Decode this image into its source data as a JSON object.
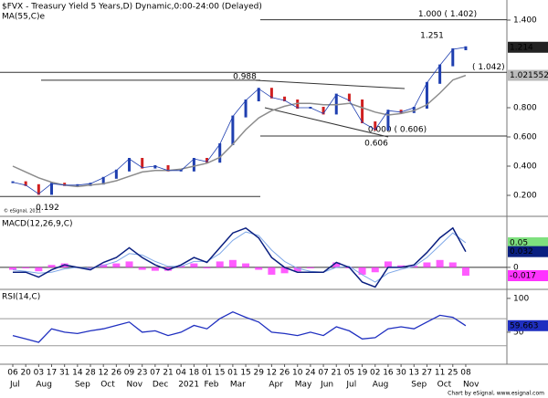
{
  "chart_data": [
    {
      "type": "line",
      "title": "$FVX - Treasury Yield 5 Years,D) Dynamic,0:00-24:00 (Delayed)",
      "indicator": "MA(55,C)e",
      "watermark": "© eSignal, 2011",
      "categories": [
        "06",
        "20",
        "03",
        "17",
        "31",
        "14",
        "28",
        "12",
        "26",
        "09",
        "23",
        "07",
        "21",
        "04",
        "18",
        "01",
        "15",
        "01",
        "15",
        "29",
        "12",
        "26",
        "10",
        "24",
        "07",
        "21",
        "05",
        "19",
        "02",
        "16",
        "30",
        "13",
        "27",
        "11",
        "25",
        "08"
      ],
      "month_labels": [
        "Jul",
        null,
        "Aug",
        null,
        null,
        "Sep",
        null,
        "Oct",
        null,
        "Nov",
        null,
        "Dec",
        null,
        "2021",
        null,
        "Feb",
        null,
        "Mar",
        null,
        null,
        "Apr",
        null,
        "May",
        null,
        "Jun",
        null,
        "Jul",
        null,
        "Aug",
        null,
        null,
        "Sep",
        null,
        "Oct",
        null,
        "Nov"
      ],
      "series": [
        {
          "name": "$FVX",
          "color": "#1f3fb0",
          "values": [
            0.29,
            0.27,
            0.21,
            0.28,
            0.27,
            0.27,
            0.28,
            0.32,
            0.37,
            0.45,
            0.39,
            0.4,
            0.37,
            0.37,
            0.45,
            0.43,
            0.55,
            0.74,
            0.85,
            0.93,
            0.87,
            0.85,
            0.8,
            0.8,
            0.76,
            0.89,
            0.85,
            0.7,
            0.65,
            0.78,
            0.77,
            0.8,
            0.97,
            1.09,
            1.2,
            1.214
          ],
          "last_label": "1.214"
        },
        {
          "name": "MA(55,C)",
          "color": "#8c8c8c",
          "values": [
            0.4,
            0.36,
            0.32,
            0.29,
            0.27,
            0.26,
            0.27,
            0.28,
            0.3,
            0.33,
            0.36,
            0.37,
            0.37,
            0.38,
            0.4,
            0.42,
            0.46,
            0.55,
            0.65,
            0.73,
            0.78,
            0.81,
            0.83,
            0.83,
            0.82,
            0.82,
            0.83,
            0.8,
            0.77,
            0.75,
            0.76,
            0.78,
            0.82,
            0.9,
            0.99,
            1.021552
          ],
          "last_label": "1.021552"
        }
      ],
      "ylim": [
        0.0625,
        1.5375
      ],
      "yticks": [
        {
          "value": 0.2,
          "label": "0.200"
        },
        {
          "value": 0.4,
          "label": "0.400"
        },
        {
          "value": 0.6,
          "label": "0.600"
        },
        {
          "value": 0.8,
          "label": "0.800"
        },
        {
          "value": 1.4,
          "label": "1.400"
        }
      ],
      "level_lines": [
        {
          "value": 1.402,
          "label": "1.000 ( 1.402)"
        },
        {
          "value": 1.042,
          "label": "( 1.042)"
        },
        {
          "value": 0.988,
          "label": "0.988"
        },
        {
          "value": 0.606,
          "label": "0.000 ( 0.606)"
        },
        {
          "value": 0.192,
          "label": "0.192"
        }
      ],
      "point_labels": [
        {
          "value": 1.251,
          "label": "1.251"
        },
        {
          "value": 0.606,
          "label": "0.606"
        }
      ]
    },
    {
      "type": "macd",
      "title": "MACD(12,26,9,C)",
      "series": [
        {
          "name": "MACD",
          "color": "#0a1f80",
          "values": [
            -0.01,
            -0.01,
            -0.02,
            -0.005,
            0.005,
            0.0,
            -0.005,
            0.01,
            0.02,
            0.04,
            0.02,
            0.005,
            -0.005,
            0.005,
            0.02,
            0.01,
            0.04,
            0.07,
            0.08,
            0.06,
            0.02,
            0.0,
            -0.01,
            -0.01,
            -0.01,
            0.01,
            0.0,
            -0.03,
            -0.04,
            0.0,
            0.0,
            0.005,
            0.03,
            0.06,
            0.08,
            0.032
          ],
          "last_label": "0.032"
        },
        {
          "name": "Signal",
          "color": "#7fa8e8",
          "values": [
            -0.005,
            -0.008,
            -0.012,
            -0.01,
            -0.003,
            0.0,
            -0.002,
            0.004,
            0.012,
            0.028,
            0.025,
            0.012,
            0.002,
            0.002,
            0.012,
            0.012,
            0.028,
            0.055,
            0.072,
            0.065,
            0.035,
            0.012,
            -0.002,
            -0.008,
            -0.01,
            0.0,
            0.002,
            -0.015,
            -0.03,
            -0.012,
            -0.004,
            0.002,
            0.02,
            0.045,
            0.07,
            0.05
          ],
          "last_label": "0.05"
        },
        {
          "name": "Histogram",
          "color": "#ff33ff",
          "values": [
            -0.005,
            -0.002,
            -0.008,
            0.005,
            0.008,
            0.0,
            -0.003,
            0.006,
            0.008,
            0.012,
            -0.005,
            -0.007,
            -0.007,
            0.003,
            0.008,
            -0.002,
            0.012,
            0.015,
            0.008,
            -0.005,
            -0.015,
            -0.012,
            -0.008,
            -0.002,
            0.0,
            0.01,
            -0.002,
            -0.015,
            -0.01,
            0.012,
            0.004,
            0.003,
            0.01,
            0.015,
            0.01,
            -0.017
          ],
          "last_label": "-0.017"
        }
      ],
      "ylim": [
        -0.043,
        0.102
      ],
      "yticks": [
        0
      ]
    },
    {
      "type": "rsi",
      "title": "RSI(14,C)",
      "series": [
        {
          "name": "RSI",
          "color": "#1f2fc0",
          "values": [
            45,
            40,
            35,
            55,
            50,
            48,
            52,
            55,
            60,
            65,
            50,
            52,
            45,
            50,
            60,
            55,
            70,
            80,
            72,
            65,
            50,
            48,
            45,
            50,
            45,
            58,
            52,
            40,
            42,
            55,
            58,
            55,
            65,
            75,
            72,
            59.663
          ],
          "last_label": "59.663"
        }
      ],
      "levels": [
        30,
        70
      ],
      "ylim": [
        4,
        112
      ],
      "yticks": [
        50,
        100
      ]
    }
  ],
  "footer": "Chart by eSignal, www.esignal.com"
}
